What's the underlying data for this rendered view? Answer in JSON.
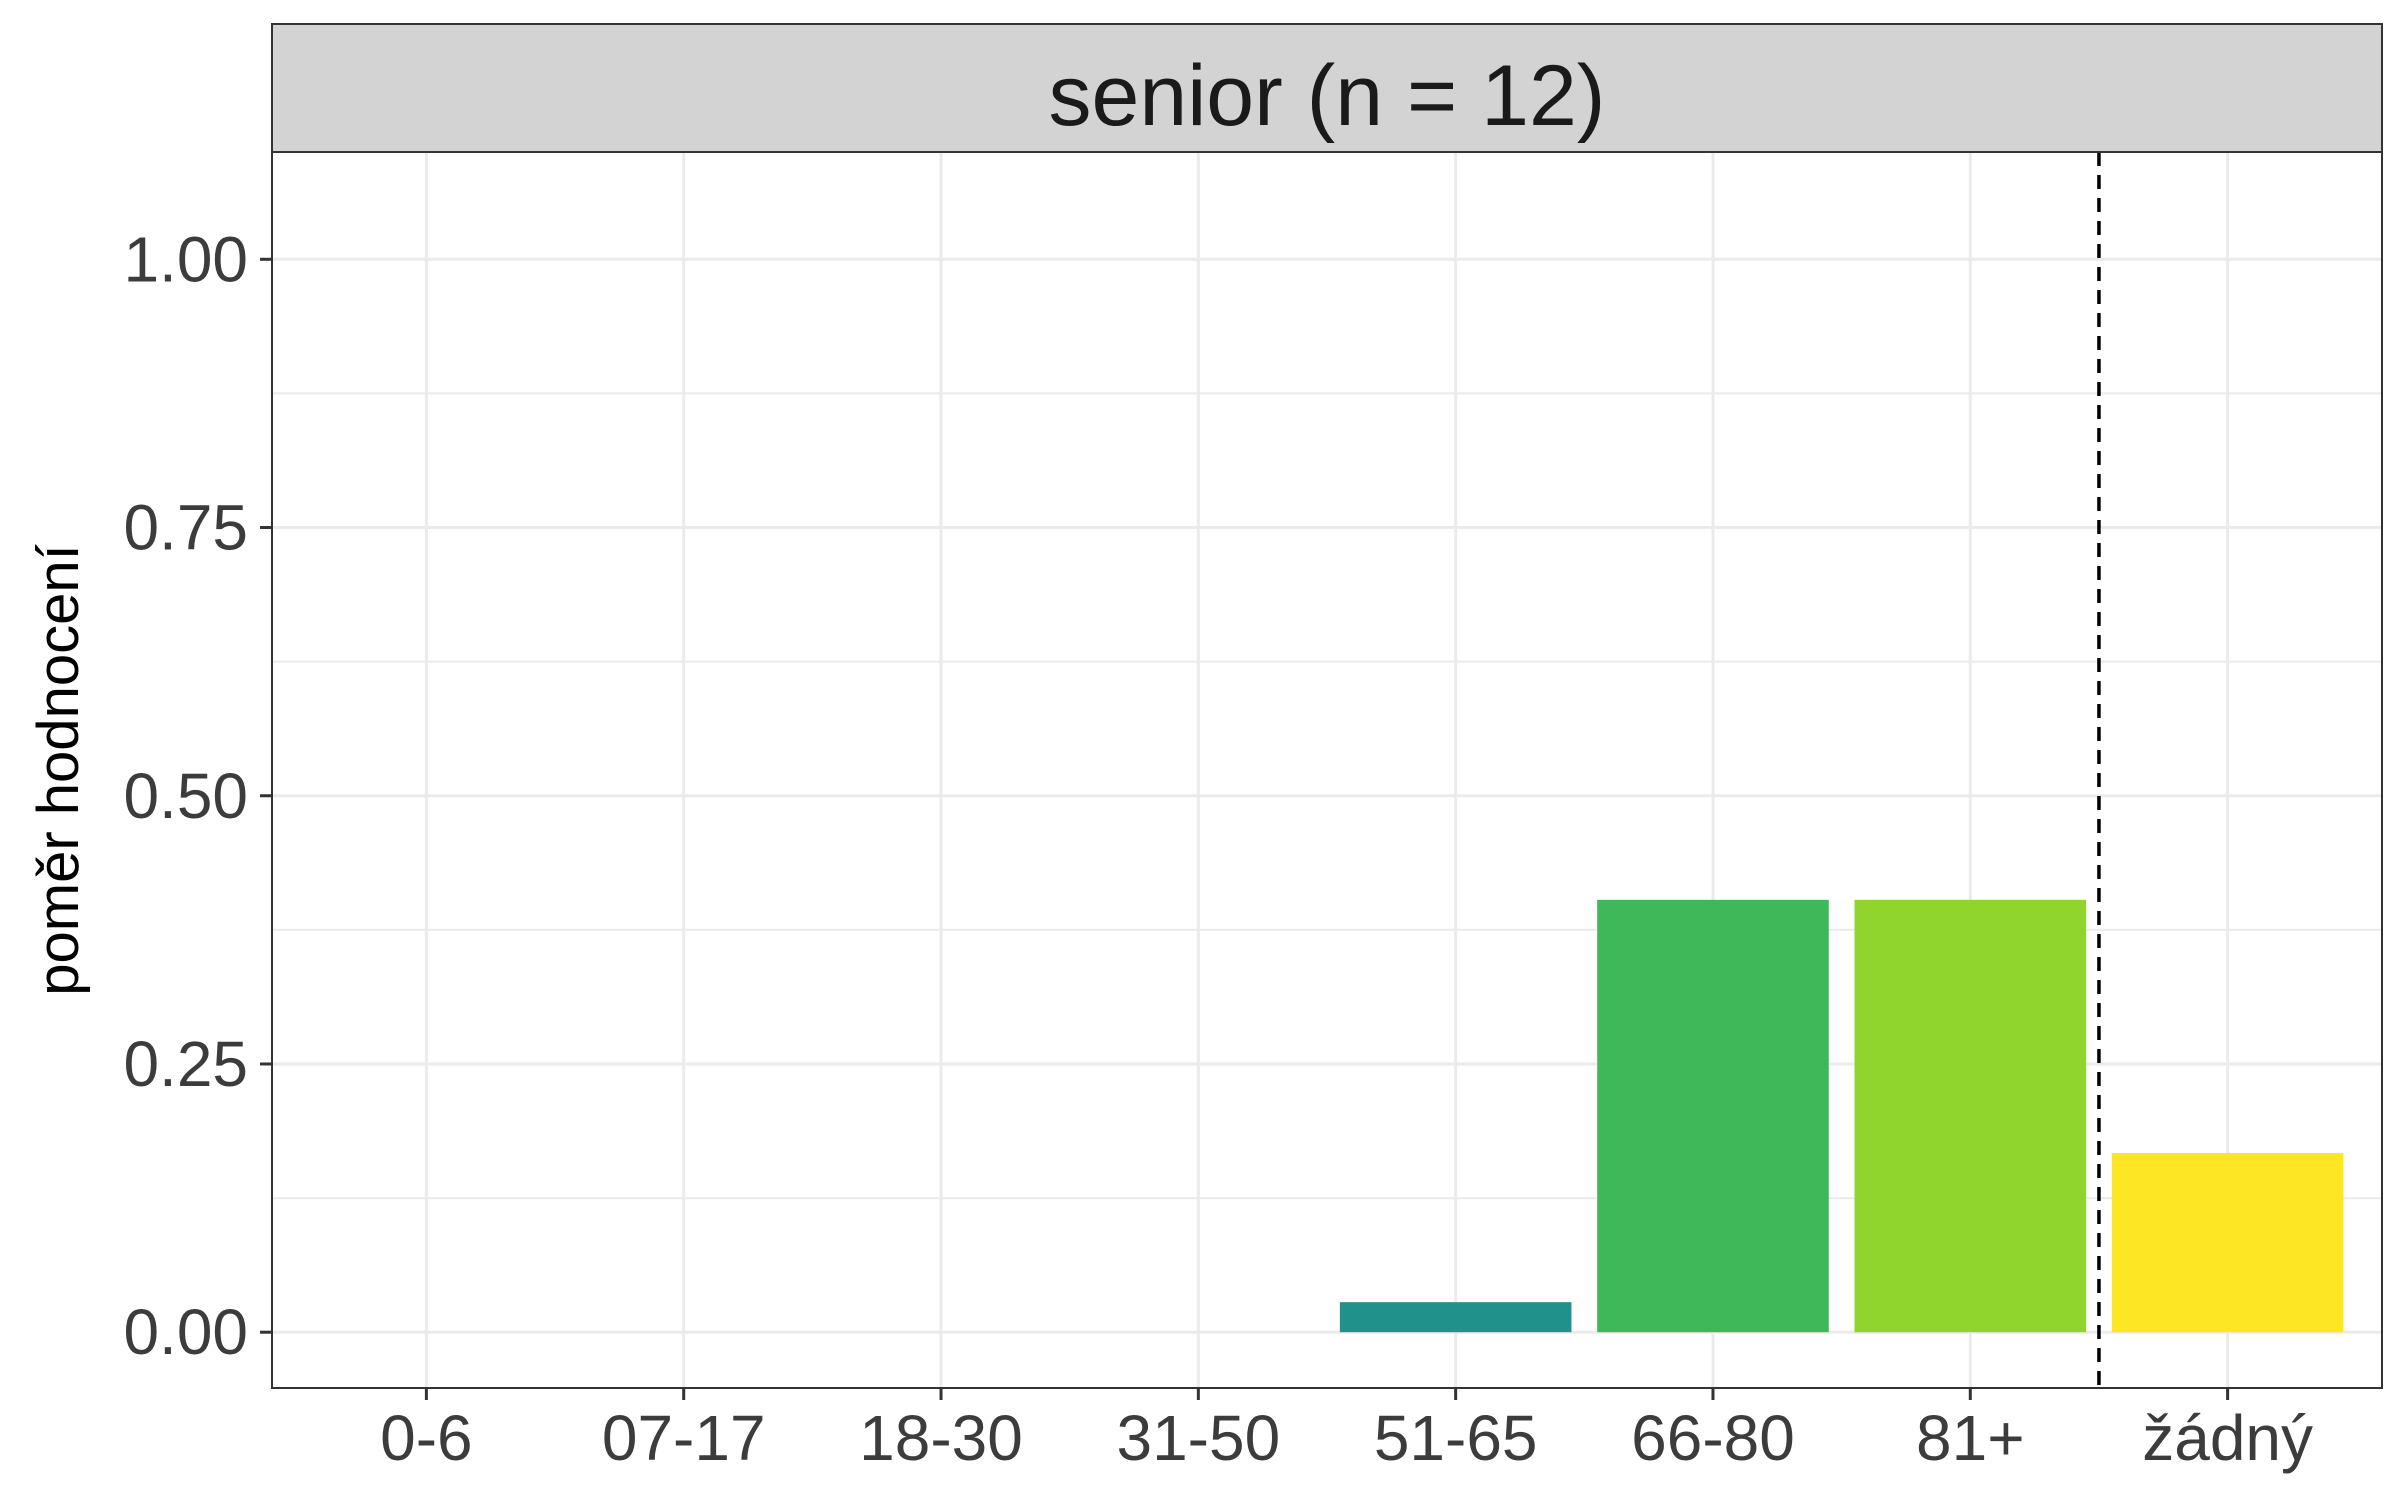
{
  "chart_data": {
    "type": "bar",
    "facet_title": "senior (n = 12)",
    "ylabel": "poměr hodnocení",
    "xlabel": "",
    "categories": [
      "0-6",
      "07-17",
      "18-30",
      "31-50",
      "51-65",
      "66-80",
      "81+",
      "žádný"
    ],
    "values": [
      0,
      0,
      0,
      0,
      0.028,
      0.403,
      0.403,
      0.167
    ],
    "colors": [
      "#440154",
      "#46337E",
      "#365C8D",
      "#277F8E",
      "#21918C",
      "#3FB85A",
      "#8FD52E",
      "#FDE725"
    ],
    "ylim": [
      -0.052,
      1.1
    ],
    "yticks": [
      0,
      0.25,
      0.5,
      0.75,
      1.0
    ],
    "ytick_labels": [
      "0.00",
      "0.25",
      "0.50",
      "0.75",
      "1.00"
    ],
    "reference_line": {
      "type": "vertical-dashed",
      "after_category": "81+"
    },
    "grid": true,
    "legend": "none",
    "strip_color": "#D3D3D3",
    "grid_color": "#EBEBEB",
    "text_color": "#3C3C3C"
  }
}
